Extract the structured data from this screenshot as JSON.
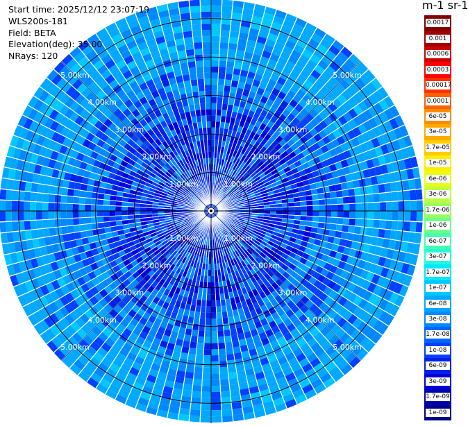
{
  "header": {
    "start_time": "Start time: 2025/12/12 23:07:19",
    "instrument": "WLS200s-181",
    "field": "Field: BETA",
    "elevation": "Elevation(deg): 35.00",
    "nrays": "NRays: 120"
  },
  "colorbar": {
    "title": "m-1 sr-1",
    "labels": [
      "0.0017",
      "0.001",
      "0.0006",
      "0.0003",
      "0.00017",
      "0.0001",
      "6e-05",
      "3e-05",
      "1.7e-05",
      "1e-05",
      "6e-06",
      "3e-06",
      "1.7e-06",
      "1e-06",
      "6e-07",
      "3e-07",
      "1.7e-07",
      "1e-07",
      "6e-08",
      "3e-08",
      "1.7e-08",
      "1e-08",
      "6e-09",
      "3e-09",
      "1.7e-09",
      "1e-09"
    ],
    "colors": [
      "#800000",
      "#a00000",
      "#cc0000",
      "#ff0000",
      "#ff3000",
      "#ff6000",
      "#ff8c00",
      "#ffaa00",
      "#ffcc00",
      "#ffee00",
      "#e8ff10",
      "#c0ff40",
      "#98ff60",
      "#70ff88",
      "#48ffb0",
      "#20ffd8",
      "#00e8ff",
      "#00c8ff",
      "#00a8ff",
      "#0088ff",
      "#0064ff",
      "#0040ff",
      "#0020e8",
      "#0000d8",
      "#0000b0",
      "#000088"
    ]
  },
  "range_rings": {
    "labels": [
      "1.00km",
      "2.00km",
      "3.00km",
      "4.00km",
      "5.00km"
    ]
  },
  "chart_data": {
    "type": "heatmap",
    "title": "",
    "field": "BETA",
    "units": "m-1 sr-1",
    "elevation_deg": 35.0,
    "nrays": 120,
    "range_rings_km": [
      1,
      2,
      3,
      4,
      5
    ],
    "max_range_km": 5.5,
    "dominant_values": [
      "1e-08",
      "6e-08"
    ]
  }
}
